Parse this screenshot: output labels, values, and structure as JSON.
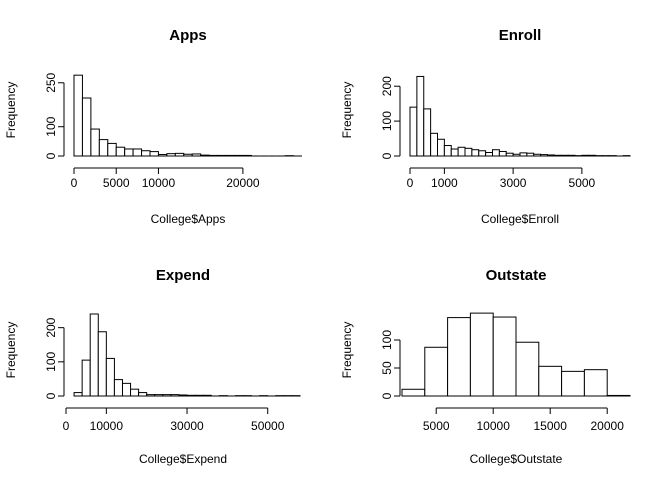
{
  "chart_data": [
    {
      "type": "bar",
      "title": "Apps",
      "xlabel": "College$Apps",
      "ylabel": "Frequency",
      "bin_width": 1000,
      "bin_start": 0,
      "values": [
        276,
        198,
        92,
        56,
        43,
        30,
        24,
        24,
        18,
        15,
        5,
        8,
        9,
        6,
        7,
        3,
        2,
        2,
        2,
        2,
        2,
        0,
        0,
        0,
        0,
        1,
        0
      ],
      "xlim": [
        0,
        27000
      ],
      "ylim": [
        0,
        280
      ],
      "x_ticks": [
        0,
        5000,
        10000,
        20000
      ],
      "y_ticks": [
        0,
        100,
        250
      ]
    },
    {
      "type": "bar",
      "title": "Enroll",
      "xlabel": "College$Enroll",
      "ylabel": "Frequency",
      "bin_width": 200,
      "bin_start": 0,
      "values": [
        140,
        228,
        135,
        65,
        48,
        30,
        20,
        25,
        22,
        18,
        15,
        10,
        18,
        13,
        8,
        5,
        9,
        8,
        5,
        4,
        3,
        2,
        2,
        2,
        1,
        2,
        2,
        1,
        1,
        1,
        0,
        1
      ],
      "xlim": [
        0,
        6400
      ],
      "ylim": [
        0,
        235
      ],
      "x_ticks": [
        0,
        1000,
        3000,
        5000
      ],
      "y_ticks": [
        0,
        100,
        200
      ]
    },
    {
      "type": "bar",
      "title": "Expend",
      "xlabel": "College$Expend",
      "ylabel": "Frequency",
      "bin_width": 2000,
      "bin_start": 2000,
      "values": [
        10,
        105,
        240,
        188,
        110,
        48,
        37,
        20,
        10,
        4,
        4,
        4,
        4,
        3,
        2,
        2,
        2,
        0,
        1,
        0,
        1,
        1,
        0,
        1,
        0,
        1,
        1,
        1
      ],
      "xlim": [
        0,
        58000
      ],
      "ylim": [
        0,
        240
      ],
      "x_ticks": [
        0,
        10000,
        30000,
        50000
      ],
      "y_ticks": [
        0,
        100,
        200
      ]
    },
    {
      "type": "bar",
      "title": "Outstate",
      "xlabel": "College$Outstate",
      "ylabel": "Frequency",
      "bin_width": 2000,
      "bin_start": 2000,
      "values": [
        12,
        87,
        140,
        148,
        141,
        96,
        53,
        44,
        47,
        1
      ],
      "xlim": [
        2000,
        22000
      ],
      "ylim": [
        0,
        150
      ],
      "x_ticks": [
        5000,
        10000,
        15000,
        20000
      ],
      "y_ticks": [
        0,
        50,
        100
      ]
    }
  ]
}
